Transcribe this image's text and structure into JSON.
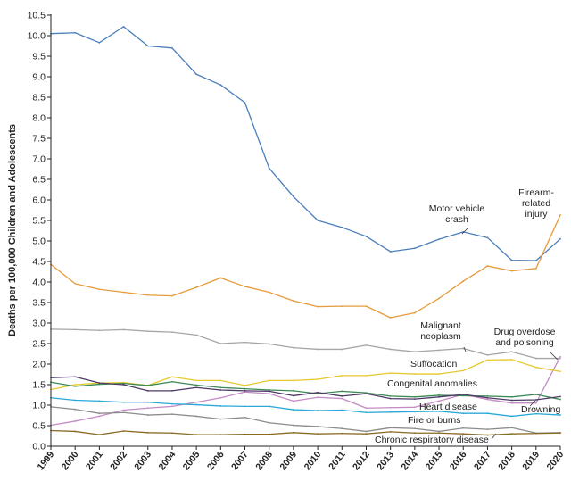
{
  "chart_data": {
    "type": "line",
    "title": "",
    "xlabel": "",
    "ylabel": "Deaths per 100,000 Children and Adolescents",
    "xlim": [
      1999,
      2020
    ],
    "ylim": [
      0,
      10.5
    ],
    "grid": false,
    "x": [
      "1999",
      "2000",
      "2001",
      "2002",
      "2003",
      "2004",
      "2005",
      "2006",
      "2007",
      "2008",
      "2009",
      "2010",
      "2011",
      "2012",
      "2013",
      "2014",
      "2015",
      "2016",
      "2017",
      "2018",
      "2019",
      "2020"
    ],
    "y_ticks": [
      "0.0",
      "0.5",
      "1.0",
      "1.5",
      "2.0",
      "2.5",
      "3.0",
      "3.5",
      "4.0",
      "4.5",
      "5.0",
      "5.5",
      "6.0",
      "6.5",
      "7.0",
      "7.5",
      "8.0",
      "8.5",
      "9.0",
      "9.5",
      "10.0",
      "10.5"
    ],
    "series": [
      {
        "name": "Motor vehicle crash",
        "color": "#4a7ebb",
        "values": [
          10.05,
          10.07,
          9.83,
          10.22,
          9.75,
          9.7,
          9.06,
          8.8,
          8.37,
          6.77,
          6.08,
          5.5,
          5.33,
          5.11,
          4.74,
          4.82,
          5.04,
          5.22,
          5.08,
          4.53,
          4.52,
          5.05
        ]
      },
      {
        "name": "Firearm-related injury",
        "color": "#e69b3c",
        "values": [
          4.43,
          3.96,
          3.82,
          3.75,
          3.68,
          3.66,
          3.87,
          4.1,
          3.89,
          3.75,
          3.54,
          3.4,
          3.41,
          3.41,
          3.13,
          3.25,
          3.6,
          4.02,
          4.39,
          4.27,
          4.33,
          5.63
        ]
      },
      {
        "name": "Malignant neoplasm",
        "color": "#a6a6a6",
        "values": [
          2.85,
          2.84,
          2.82,
          2.84,
          2.8,
          2.78,
          2.71,
          2.5,
          2.53,
          2.49,
          2.4,
          2.36,
          2.36,
          2.46,
          2.36,
          2.3,
          2.34,
          2.38,
          2.22,
          2.3,
          2.14,
          2.14
        ]
      },
      {
        "name": "Drug overdose and poisoning",
        "color": "#c58bc5",
        "values": [
          0.51,
          0.61,
          0.73,
          0.88,
          0.93,
          0.97,
          1.07,
          1.18,
          1.32,
          1.28,
          1.1,
          1.19,
          1.16,
          0.93,
          0.94,
          0.95,
          1.1,
          1.26,
          1.14,
          1.05,
          1.05,
          2.18
        ]
      },
      {
        "name": "Suffocation",
        "color": "#e6c92e",
        "values": [
          1.38,
          1.5,
          1.54,
          1.55,
          1.48,
          1.69,
          1.6,
          1.6,
          1.48,
          1.6,
          1.6,
          1.63,
          1.72,
          1.72,
          1.78,
          1.76,
          1.76,
          1.84,
          2.1,
          2.11,
          1.92,
          1.82
        ]
      },
      {
        "name": "Congenital anomalies",
        "color": "#3d8a56",
        "values": [
          1.56,
          1.46,
          1.51,
          1.53,
          1.48,
          1.57,
          1.49,
          1.43,
          1.4,
          1.37,
          1.35,
          1.28,
          1.34,
          1.3,
          1.22,
          1.2,
          1.24,
          1.23,
          1.22,
          1.2,
          1.26,
          1.14
        ]
      },
      {
        "name": "Heart disease",
        "color": "#2aa8d8",
        "values": [
          1.18,
          1.12,
          1.1,
          1.07,
          1.07,
          1.03,
          1.01,
          0.98,
          0.97,
          0.97,
          0.89,
          0.87,
          0.88,
          0.82,
          0.83,
          0.84,
          0.85,
          0.8,
          0.8,
          0.73,
          0.79,
          0.76
        ]
      },
      {
        "name": "Drowning",
        "color": "#4d3a66",
        "values": [
          1.67,
          1.69,
          1.54,
          1.5,
          1.35,
          1.35,
          1.43,
          1.37,
          1.35,
          1.34,
          1.23,
          1.31,
          1.22,
          1.28,
          1.16,
          1.15,
          1.2,
          1.26,
          1.18,
          1.12,
          1.13,
          1.21
        ]
      },
      {
        "name": "Fire or burns",
        "color": "#8c8c8c",
        "values": [
          0.96,
          0.9,
          0.8,
          0.82,
          0.76,
          0.78,
          0.73,
          0.66,
          0.7,
          0.57,
          0.51,
          0.48,
          0.43,
          0.36,
          0.45,
          0.43,
          0.36,
          0.44,
          0.41,
          0.45,
          0.32,
          0.33
        ]
      },
      {
        "name": "Chronic respiratory disease",
        "color": "#8a6a25",
        "values": [
          0.38,
          0.36,
          0.28,
          0.37,
          0.33,
          0.32,
          0.28,
          0.28,
          0.29,
          0.29,
          0.33,
          0.3,
          0.31,
          0.3,
          0.35,
          0.32,
          0.32,
          0.3,
          0.27,
          0.3,
          0.31,
          0.32
        ]
      }
    ],
    "labels": [
      {
        "series": "Motor vehicle crash",
        "lines": [
          "Motor vehicle",
          "crash"
        ]
      },
      {
        "series": "Firearm-related injury",
        "lines": [
          "Firearm-",
          "related",
          "injury"
        ]
      },
      {
        "series": "Malignant neoplasm",
        "lines": [
          "Malignant",
          "neoplasm"
        ]
      },
      {
        "series": "Drug overdose and poisoning",
        "lines": [
          "Drug overdose",
          "and poisoning"
        ]
      },
      {
        "series": "Suffocation",
        "lines": [
          "Suffocation"
        ]
      },
      {
        "series": "Congenital anomalies",
        "lines": [
          "Congenital anomalies"
        ]
      },
      {
        "series": "Heart disease",
        "lines": [
          "Heart disease"
        ]
      },
      {
        "series": "Drowning",
        "lines": [
          "Drowning"
        ]
      },
      {
        "series": "Fire or burns",
        "lines": [
          "Fire or burns"
        ]
      },
      {
        "series": "Chronic respiratory disease",
        "lines": [
          "Chronic respiratory disease"
        ]
      }
    ]
  }
}
